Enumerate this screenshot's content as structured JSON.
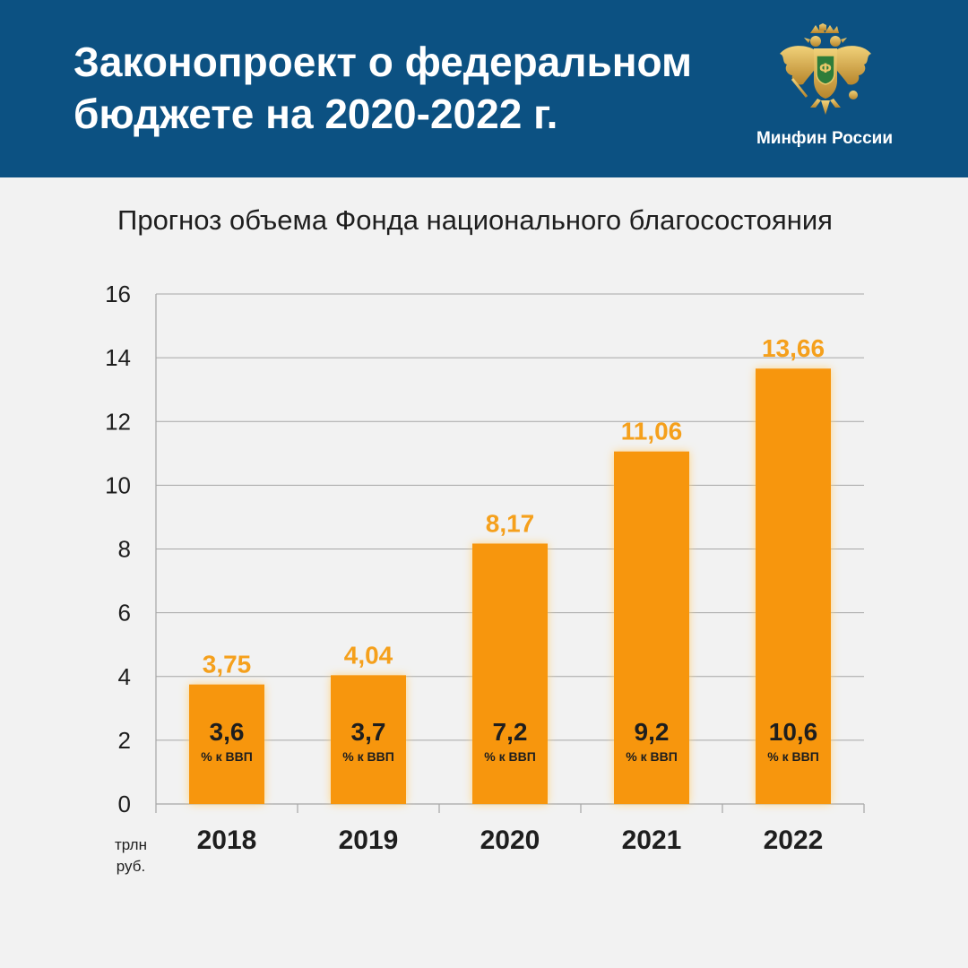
{
  "header": {
    "title_line1": "Законопроект о федеральном",
    "title_line2": "бюджете на 2020-2022 г.",
    "logo_caption": "Минфин России",
    "emblem_icon": "double-headed-eagle-emblem-icon"
  },
  "colors": {
    "header_bg": "#0c5182",
    "bar": "#f7960e",
    "value_label": "#f5a01c",
    "page_bg": "#f2f2f2"
  },
  "chart_data": {
    "type": "bar",
    "title": "Прогноз объема Фонда национального благосостояния",
    "categories": [
      "2018",
      "2019",
      "2020",
      "2021",
      "2022"
    ],
    "values": [
      3.75,
      4.04,
      8.17,
      11.06,
      13.66
    ],
    "value_labels": [
      "3,75",
      "4,04",
      "8,17",
      "11,06",
      "13,66"
    ],
    "gdp_share_labels": [
      "3,6",
      "3,7",
      "7,2",
      "9,2",
      "10,6"
    ],
    "gdp_unit": "% к ВВП",
    "y_unit_line1": "трлн",
    "y_unit_line2": "руб.",
    "ylim": [
      0,
      16
    ],
    "yticks": [
      0,
      2,
      4,
      6,
      8,
      10,
      12,
      14,
      16
    ],
    "grid": true,
    "legend": "none"
  }
}
